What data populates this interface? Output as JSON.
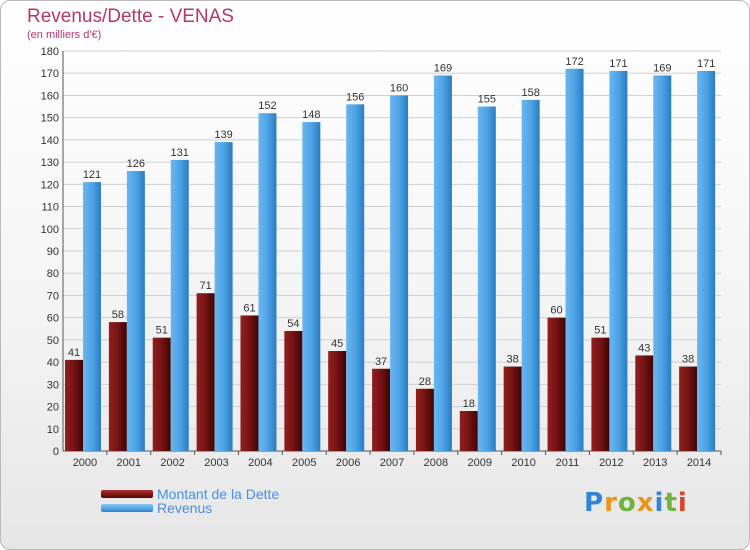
{
  "header": {
    "title": "Revenus/Dette - VENAS",
    "subtitle": "(en milliers d'€)"
  },
  "legend": {
    "debt_label": "Montant de la Dette",
    "revenue_label": "Revenus"
  },
  "brand": {
    "logo_text": "Proxiti",
    "letter_colors": [
      "#2f86d6",
      "#e8951e",
      "#6fb33a",
      "#e8951e",
      "#2f86d6",
      "#6fb33a",
      "#d9432b"
    ]
  },
  "colors": {
    "debt": "#7a1414",
    "revenue": "#4da3e6",
    "axis_text": "#333333",
    "grid": "#d0d0d0"
  },
  "chart_data": {
    "type": "bar",
    "title": "Revenus/Dette - VENAS",
    "ylabel": "(en milliers d'€)",
    "categories": [
      "2000",
      "2001",
      "2002",
      "2003",
      "2004",
      "2005",
      "2006",
      "2007",
      "2008",
      "2009",
      "2010",
      "2011",
      "2012",
      "2013",
      "2014"
    ],
    "series": [
      {
        "name": "Montant de la Dette",
        "values": [
          41,
          58,
          51,
          71,
          61,
          54,
          45,
          37,
          28,
          18,
          38,
          60,
          51,
          43,
          38
        ]
      },
      {
        "name": "Revenus",
        "values": [
          121,
          126,
          131,
          139,
          152,
          148,
          156,
          160,
          169,
          155,
          158,
          172,
          171,
          169,
          171
        ]
      }
    ],
    "ylim": [
      0,
      180
    ],
    "yticks": [
      0,
      10,
      20,
      30,
      40,
      50,
      60,
      70,
      80,
      90,
      100,
      110,
      120,
      130,
      140,
      150,
      160,
      170,
      180
    ],
    "grid": true,
    "legend_position": "bottom-left"
  }
}
